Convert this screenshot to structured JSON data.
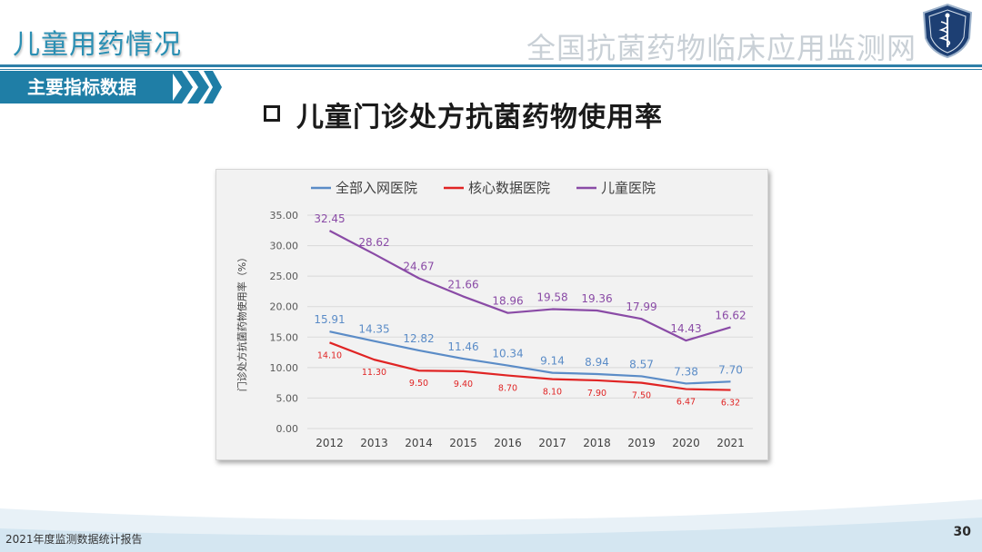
{
  "header": {
    "page_title": "儿童用药情况",
    "org_name": "全国抗菌药物临床应用监测网",
    "section_tag": "主要指标数据"
  },
  "subtitle": "儿童门诊处方抗菌药物使用率",
  "footer": {
    "report_name": "2021年度监测数据统计报告",
    "page_number": "30"
  },
  "colors": {
    "accent": "#1f7ea6",
    "series_all": "#5b8cc7",
    "series_core": "#e02424",
    "series_child": "#8a4ba6"
  },
  "chart_data": {
    "type": "line",
    "ylabel": "门诊处方抗菌药物使用率（%）",
    "xlabel": "",
    "ylim": [
      0,
      35
    ],
    "yticks": [
      "0.00",
      "5.00",
      "10.00",
      "15.00",
      "20.00",
      "25.00",
      "30.00",
      "35.00"
    ],
    "grid": true,
    "legend_position": "top",
    "categories": [
      "2012",
      "2013",
      "2014",
      "2015",
      "2016",
      "2017",
      "2018",
      "2019",
      "2020",
      "2021"
    ],
    "series": [
      {
        "name": "全部入网医院",
        "color": "#5b8cc7",
        "values": [
          15.91,
          14.35,
          12.82,
          11.46,
          10.34,
          9.14,
          8.94,
          8.57,
          7.38,
          7.7
        ],
        "labels": [
          "15.91",
          "14.35",
          "12.82",
          "11.46",
          "10.34",
          "9.14",
          "8.94",
          "8.57",
          "7.38",
          "7.70"
        ]
      },
      {
        "name": "核心数据医院",
        "color": "#e02424",
        "values": [
          14.1,
          11.3,
          9.5,
          9.4,
          8.7,
          8.1,
          7.9,
          7.5,
          6.47,
          6.32
        ],
        "labels": [
          "14.10",
          "11.30",
          "9.50",
          "9.40",
          "8.70",
          "8.10",
          "7.90",
          "7.50",
          "6.47",
          "6.32"
        ]
      },
      {
        "name": "儿童医院",
        "color": "#8a4ba6",
        "values": [
          32.45,
          28.62,
          24.67,
          21.66,
          18.96,
          19.58,
          19.36,
          17.99,
          14.43,
          16.62
        ],
        "labels": [
          "32.45",
          "28.62",
          "24.67",
          "21.66",
          "18.96",
          "19.58",
          "19.36",
          "17.99",
          "14.43",
          "16.62"
        ]
      }
    ]
  }
}
